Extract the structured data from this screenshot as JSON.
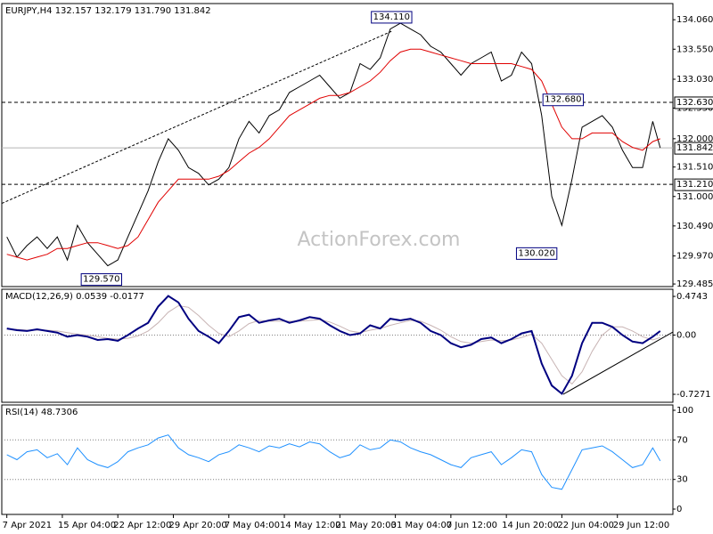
{
  "chart_data": [
    {
      "type": "line",
      "title": "EURJPY,H4 132.157 132.179 131.790 131.842",
      "watermark": "ActionForex.com",
      "x": [
        0,
        8,
        16,
        24,
        32,
        40,
        48,
        56,
        64,
        72,
        80,
        88,
        96,
        104,
        112,
        120,
        128,
        136,
        144,
        152,
        160,
        168,
        176,
        184,
        192,
        200,
        208,
        216,
        224,
        232,
        240,
        248,
        256,
        264,
        272,
        280,
        288,
        296,
        304,
        312,
        320,
        328,
        336,
        344,
        352,
        360,
        368,
        376,
        384,
        392,
        400,
        408,
        416,
        424,
        432,
        440,
        448,
        456,
        464,
        472,
        480,
        488,
        496,
        504,
        512,
        518
      ],
      "xlim": [
        -4,
        528
      ],
      "series": [
        {
          "color": "#000000",
          "values": [
            130.3,
            129.95,
            130.15,
            130.3,
            130.1,
            130.3,
            129.9,
            130.5,
            130.2,
            130.0,
            129.8,
            129.9,
            130.3,
            130.7,
            131.1,
            131.6,
            132.0,
            131.8,
            131.5,
            131.4,
            131.2,
            131.3,
            131.5,
            132.0,
            132.3,
            132.1,
            132.4,
            132.5,
            132.8,
            132.9,
            133.0,
            133.1,
            132.9,
            132.7,
            132.8,
            133.3,
            133.2,
            133.4,
            133.9,
            134.0,
            133.9,
            133.8,
            133.6,
            133.5,
            133.3,
            133.1,
            133.3,
            133.4,
            133.5,
            133.0,
            133.1,
            133.5,
            133.3,
            132.4,
            131.0,
            130.5,
            131.3,
            132.2,
            132.3,
            132.4,
            132.2,
            131.8,
            131.5,
            131.5,
            132.3,
            131.842
          ]
        },
        {
          "color": "#e00000",
          "values": [
            130.0,
            129.95,
            129.9,
            129.95,
            130.0,
            130.1,
            130.1,
            130.15,
            130.2,
            130.2,
            130.15,
            130.1,
            130.15,
            130.3,
            130.6,
            130.9,
            131.1,
            131.3,
            131.3,
            131.3,
            131.3,
            131.35,
            131.45,
            131.6,
            131.75,
            131.85,
            132.0,
            132.2,
            132.4,
            132.5,
            132.6,
            132.7,
            132.75,
            132.75,
            132.8,
            132.9,
            133.0,
            133.15,
            133.35,
            133.5,
            133.55,
            133.55,
            133.5,
            133.45,
            133.4,
            133.35,
            133.3,
            133.3,
            133.3,
            133.3,
            133.3,
            133.25,
            133.2,
            133.0,
            132.6,
            132.2,
            132.0,
            132.0,
            132.1,
            132.1,
            132.1,
            131.95,
            131.85,
            131.8,
            131.95,
            132.0
          ]
        }
      ],
      "ylim": [
        129.44,
        134.34
      ],
      "yticks": [
        {
          "value": 134.06,
          "label": "134.060"
        },
        {
          "value": 133.55,
          "label": "133.550"
        },
        {
          "value": 133.03,
          "label": "133.030"
        },
        {
          "value": 132.53,
          "label": "132.530"
        },
        {
          "value": 132.0,
          "label": "132.000"
        },
        {
          "value": 131.51,
          "label": "131.510"
        },
        {
          "value": 131.0,
          "label": "131.000"
        },
        {
          "value": 130.49,
          "label": "130.490"
        },
        {
          "value": 129.97,
          "label": "129.970"
        },
        129.485
      ],
      "levels": [
        {
          "value": 132.63,
          "label": "132.630",
          "style": "dashed",
          "color": "#000000"
        },
        {
          "value": 131.842,
          "label": "131.842",
          "style": "solid",
          "color": "#b4b4b4"
        },
        {
          "value": 131.21,
          "label": "131.210",
          "style": "dashed",
          "color": "#000000"
        }
      ],
      "annotations": [
        {
          "x": 305,
          "value": 134.11,
          "label": "134.110"
        },
        {
          "x": 441,
          "value": 132.68,
          "label": "132.680"
        },
        {
          "x": 420,
          "value": 130.02,
          "label": "130.020"
        },
        {
          "x": 75,
          "value": 129.57,
          "label": "129.570"
        }
      ],
      "trendlines": [
        {
          "x": [
            -4,
            305
          ],
          "y": [
            130.88,
            133.86
          ]
        }
      ]
    },
    {
      "type": "line",
      "title": "MACD(12,26,9) 0.0539 -0.0177",
      "x": [
        0,
        8,
        16,
        24,
        32,
        40,
        48,
        56,
        64,
        72,
        80,
        88,
        96,
        104,
        112,
        120,
        128,
        136,
        144,
        152,
        160,
        168,
        176,
        184,
        192,
        200,
        208,
        216,
        224,
        232,
        240,
        248,
        256,
        264,
        272,
        280,
        288,
        296,
        304,
        312,
        320,
        328,
        336,
        344,
        352,
        360,
        368,
        376,
        384,
        392,
        400,
        408,
        416,
        424,
        432,
        440,
        448,
        456,
        464,
        472,
        480,
        488,
        496,
        504,
        512,
        518
      ],
      "xlim": [
        -4,
        528
      ],
      "series": [
        {
          "color": "#c8b4b4",
          "values": [
            0.07,
            0.07,
            0.06,
            0.06,
            0.06,
            0.05,
            0.03,
            0.01,
            0.0,
            -0.02,
            -0.04,
            -0.05,
            -0.04,
            -0.01,
            0.05,
            0.15,
            0.28,
            0.36,
            0.34,
            0.24,
            0.12,
            0.02,
            -0.02,
            0.05,
            0.14,
            0.18,
            0.17,
            0.17,
            0.17,
            0.17,
            0.18,
            0.19,
            0.16,
            0.11,
            0.05,
            0.03,
            0.06,
            0.08,
            0.12,
            0.15,
            0.18,
            0.17,
            0.12,
            0.06,
            -0.02,
            -0.08,
            -0.1,
            -0.08,
            -0.06,
            -0.07,
            -0.06,
            -0.03,
            0.01,
            -0.1,
            -0.3,
            -0.5,
            -0.6,
            -0.45,
            -0.2,
            0.0,
            0.1,
            0.1,
            0.05,
            -0.02,
            -0.06,
            -0.03
          ]
        },
        {
          "color": "#000080",
          "values": [
            0.08,
            0.06,
            0.05,
            0.07,
            0.05,
            0.03,
            -0.02,
            0.0,
            -0.02,
            -0.06,
            -0.05,
            -0.07,
            0.0,
            0.08,
            0.15,
            0.35,
            0.48,
            0.4,
            0.2,
            0.05,
            -0.02,
            -0.1,
            0.05,
            0.22,
            0.25,
            0.15,
            0.18,
            0.2,
            0.15,
            0.18,
            0.22,
            0.2,
            0.12,
            0.05,
            0.0,
            0.02,
            0.12,
            0.08,
            0.2,
            0.18,
            0.2,
            0.15,
            0.05,
            0.0,
            -0.1,
            -0.15,
            -0.12,
            -0.05,
            -0.03,
            -0.1,
            -0.05,
            0.02,
            0.05,
            -0.35,
            -0.62,
            -0.72,
            -0.5,
            -0.1,
            0.15,
            0.15,
            0.1,
            0.0,
            -0.08,
            -0.1,
            -0.02,
            0.05
          ]
        }
      ],
      "ylim": [
        -0.825,
        0.562
      ],
      "yticks": [
        0.4743,
        {
          "value": 0,
          "label": "0.00"
        },
        -0.7271
      ],
      "levels": [
        {
          "value": 0,
          "style": "dotted",
          "color": "#808080"
        }
      ],
      "trendlines": [
        {
          "x": [
            441,
            528
          ],
          "y": [
            -0.727,
            0.037
          ]
        }
      ]
    },
    {
      "type": "line",
      "title": "RSI(14) 48.7306",
      "x": [
        0,
        8,
        16,
        24,
        32,
        40,
        48,
        56,
        64,
        72,
        80,
        88,
        96,
        104,
        112,
        120,
        128,
        136,
        144,
        152,
        160,
        168,
        176,
        184,
        192,
        200,
        208,
        216,
        224,
        232,
        240,
        248,
        256,
        264,
        272,
        280,
        288,
        296,
        304,
        312,
        320,
        328,
        336,
        344,
        352,
        360,
        368,
        376,
        384,
        392,
        400,
        408,
        416,
        424,
        432,
        440,
        448,
        456,
        464,
        472,
        480,
        488,
        496,
        504,
        512,
        518
      ],
      "xlim": [
        -4,
        528
      ],
      "series": [
        {
          "color": "#1e90ff",
          "values": [
            55,
            50,
            58,
            60,
            52,
            56,
            45,
            62,
            50,
            45,
            42,
            48,
            58,
            62,
            65,
            72,
            75,
            62,
            55,
            52,
            48,
            55,
            58,
            65,
            62,
            58,
            64,
            62,
            66,
            63,
            68,
            66,
            58,
            52,
            55,
            65,
            60,
            62,
            70,
            68,
            62,
            58,
            55,
            50,
            45,
            42,
            52,
            55,
            58,
            45,
            52,
            60,
            58,
            35,
            22,
            20,
            40,
            60,
            62,
            64,
            58,
            50,
            42,
            45,
            62,
            48.73
          ]
        }
      ],
      "ylim": [
        -5.4,
        105.4
      ],
      "yticks": [
        100,
        70,
        30,
        0
      ],
      "levels": [
        {
          "value": 70,
          "style": "dotted",
          "color": "#808080"
        },
        {
          "value": 30,
          "style": "dotted",
          "color": "#808080"
        }
      ],
      "xticks": [
        {
          "value": 0,
          "label": "7 Apr 2021"
        },
        {
          "value": 44,
          "label": "15 Apr 04:00"
        },
        {
          "value": 88,
          "label": "22 Apr 12:00"
        },
        {
          "value": 132,
          "label": "29 Apr 20:00"
        },
        {
          "value": 176,
          "label": "7 May 04:00"
        },
        {
          "value": 220,
          "label": "14 May 12:00"
        },
        {
          "value": 264,
          "label": "21 May 20:00"
        },
        {
          "value": 308,
          "label": "31 May 04:00"
        },
        {
          "value": 352,
          "label": "7 Jun 12:00"
        },
        {
          "value": 396,
          "label": "14 Jun 20:00"
        },
        {
          "value": 440,
          "label": "22 Jun 04:00"
        },
        {
          "value": 484,
          "label": "29 Jun 12:00"
        }
      ]
    }
  ]
}
